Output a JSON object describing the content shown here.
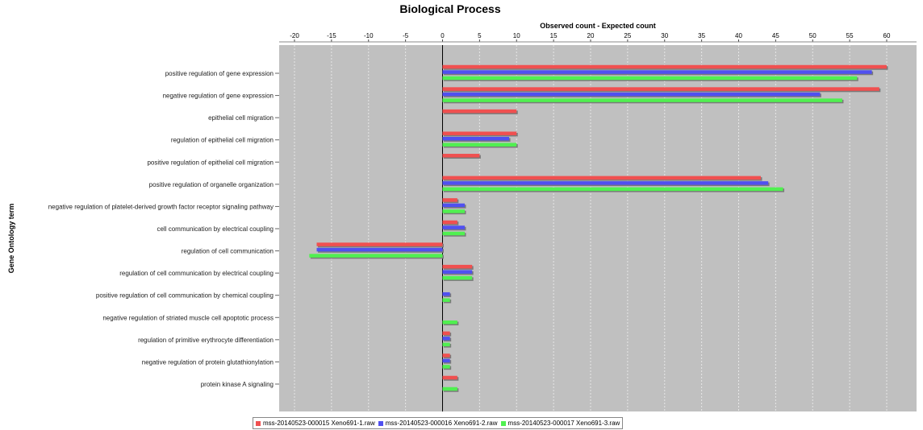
{
  "chart_data": {
    "type": "bar",
    "orientation": "horizontal",
    "title": "Biological Process",
    "xlabel": "Observed count - Expected count",
    "ylabel": "Gene Ontology term",
    "xlim": [
      -20,
      64
    ],
    "xticks": [
      -20,
      -15,
      -10,
      -5,
      0,
      5,
      10,
      15,
      20,
      25,
      30,
      35,
      40,
      45,
      50,
      55,
      60
    ],
    "grid": true,
    "legend_position": "bottom",
    "categories": [
      "positive regulation of gene expression",
      "negative regulation of gene expression",
      "epithelial cell migration",
      "regulation of epithelial cell migration",
      "positive regulation of epithelial cell migration",
      "positive regulation of organelle organization",
      "negative regulation of platelet-derived growth factor receptor signaling pathway",
      "cell communication by electrical coupling",
      "regulation of cell communication",
      "regulation of cell communication by electrical coupling",
      "positive regulation of cell communication by chemical coupling",
      "negative regulation of striated muscle cell apoptotic process",
      "regulation of primitive erythrocyte differentiation",
      "negative regulation of protein glutathionylation",
      "protein kinase A signaling"
    ],
    "series": [
      {
        "name": "mss-20140523-000015 Xeno691-1.raw",
        "color": "#f05050",
        "values": [
          60,
          59,
          10,
          10,
          5,
          43,
          2,
          2,
          -17,
          4,
          0,
          0,
          1,
          1,
          2
        ]
      },
      {
        "name": "mss-20140523-000016 Xeno691-2.raw",
        "color": "#5050f0",
        "values": [
          58,
          51,
          0,
          9,
          0,
          44,
          3,
          3,
          -17,
          4,
          1,
          0,
          1,
          1,
          0
        ]
      },
      {
        "name": "mss-20140523-000017 Xeno691-3.raw",
        "color": "#50f050",
        "values": [
          56,
          54,
          0,
          10,
          0,
          46,
          3,
          3,
          -18,
          4,
          1,
          2,
          1,
          1,
          2
        ]
      }
    ],
    "colors": {
      "plot_background": "#c0c0c0",
      "grid": "#e6e6e6",
      "zero_line": "#000000"
    }
  }
}
